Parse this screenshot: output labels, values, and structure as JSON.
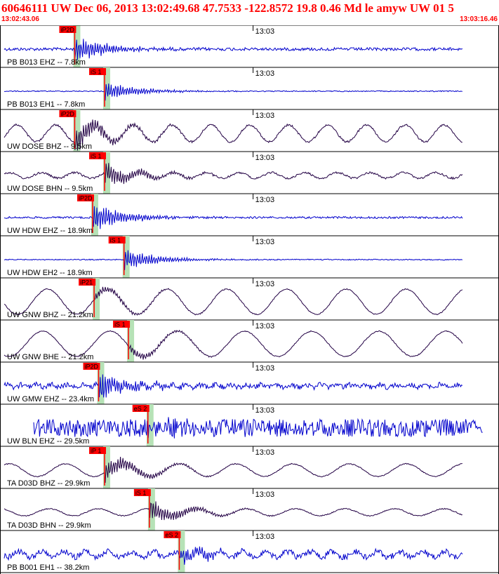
{
  "header": {
    "title": "60646111 UW Dec 06, 2013 13:02:49.68   47.7533 -122.8572 19.8 0.46 Md le amyw UW 01   5",
    "start_time": "13:02:43.06",
    "end_time": "13:03:16.46"
  },
  "chart_data": {
    "type": "line",
    "xlim": [
      "13:02:43.06",
      "13:03:16.46"
    ],
    "tick_label": "13:03",
    "grid": false,
    "legend": "none",
    "colors": {
      "highgain": "#0000cc",
      "broadband": "#220044",
      "pick": "#ff0000",
      "window": "#b6e2b6"
    },
    "traces": [
      {
        "label": "PB B013 EHZ -- 7.8km",
        "pick": "iP2D",
        "pick_time": 5.0,
        "color": "#0000cc",
        "amp": 3,
        "burst": 16,
        "wave": 0,
        "period": 0
      },
      {
        "label": "PB B013 EH1 -- 7.8km",
        "pick": "iS 1",
        "pick_time": 7.0,
        "color": "#0000cc",
        "amp": 1,
        "burst": 12,
        "wave": 0,
        "period": 0
      },
      {
        "label": "UW DOSE BHZ -- 9.5km",
        "pick": "iP2D",
        "pick_time": 5.0,
        "color": "#220044",
        "amp": 2,
        "burst": 16,
        "wave": 12,
        "period": 2.6
      },
      {
        "label": "UW DOSE BHN -- 9.5km",
        "pick": "iS 1",
        "pick_time": 7.0,
        "color": "#220044",
        "amp": 2,
        "burst": 14,
        "wave": 4,
        "period": 2.2
      },
      {
        "label": "UW HDW EHZ -- 18.9km",
        "pick": "iP2D",
        "pick_time": 6.2,
        "color": "#0000cc",
        "amp": 2,
        "burst": 18,
        "wave": 0,
        "period": 0
      },
      {
        "label": "UW HDW EH2 -- 18.9km",
        "pick": "iS 1",
        "pick_time": 8.3,
        "color": "#0000cc",
        "amp": 1,
        "burst": 14,
        "wave": 0,
        "period": 0
      },
      {
        "label": "UW GNW BHZ -- 21.2km",
        "pick": "iP21",
        "pick_time": 6.3,
        "color": "#220044",
        "amp": 1,
        "burst": 6,
        "wave": 18,
        "period": 4.0
      },
      {
        "label": "UW GNW BHE -- 21.2km",
        "pick": "iS 1",
        "pick_time": 8.6,
        "color": "#220044",
        "amp": 1,
        "burst": 6,
        "wave": 18,
        "period": 4.5
      },
      {
        "label": "UW GMW EHZ -- 23.4km",
        "pick": "iP2D",
        "pick_time": 6.6,
        "color": "#0000cc",
        "amp": 5,
        "burst": 18,
        "wave": 2,
        "period": 1.0
      },
      {
        "label": "UW BLN EHZ -- 29.5km",
        "pick": "eS 2",
        "pick_time": 9.9,
        "color": "#0000cc",
        "amp": 18,
        "burst": 6,
        "wave": 0,
        "period": 0
      },
      {
        "label": "TA D03D BHZ -- 29.9km",
        "pick": "iP 1",
        "pick_time": 7.0,
        "color": "#220044",
        "amp": 1,
        "burst": 14,
        "wave": 9,
        "period": 3.8
      },
      {
        "label": "TA D03D BHN -- 29.9km",
        "pick": "iS 1",
        "pick_time": 10.0,
        "color": "#220044",
        "amp": 1,
        "burst": 14,
        "wave": 5,
        "period": 3.3
      },
      {
        "label": "PB B001 EH1 -- 38.2km",
        "pick": "eS 2",
        "pick_time": 12.0,
        "color": "#0000cc",
        "amp": 6,
        "burst": 10,
        "wave": 4,
        "period": 1.5
      }
    ]
  }
}
